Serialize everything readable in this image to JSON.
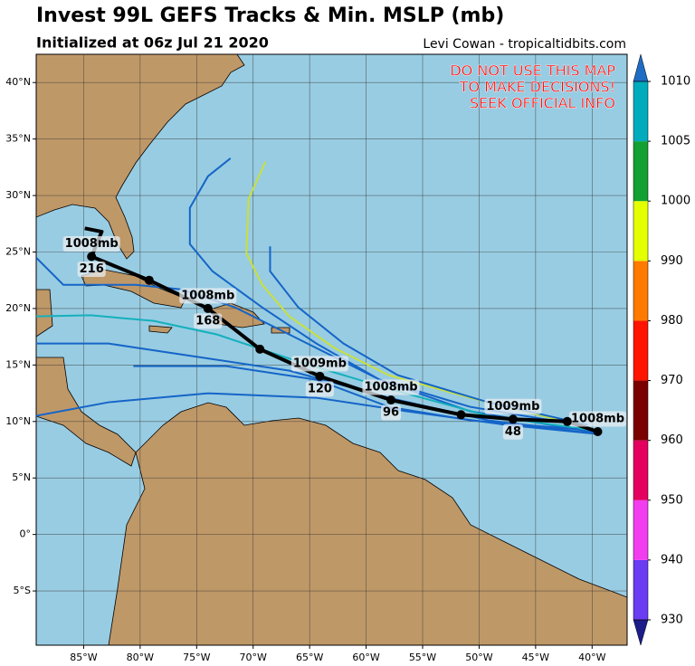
{
  "chart_data": {
    "type": "track-map",
    "title": "Invest 99L GEFS Tracks & Min. MSLP (mb)",
    "subtitle": "Initialized at 06z Jul 21 2020",
    "credit": "Levi Cowan - tropicaltidbits.com",
    "warning": [
      "DO NOT USE THIS MAP",
      "TO MAKE DECISIONS!",
      "SEEK OFFICIAL INFO"
    ],
    "xlim": [
      -89.2,
      -36.9
    ],
    "ylim": [
      -9.8,
      42.5
    ],
    "xticks": [
      {
        "value": -85,
        "label": "85°W"
      },
      {
        "value": -80,
        "label": "80°W"
      },
      {
        "value": -75,
        "label": "75°W"
      },
      {
        "value": -70,
        "label": "70°W"
      },
      {
        "value": -65,
        "label": "65°W"
      },
      {
        "value": -60,
        "label": "60°W"
      },
      {
        "value": -55,
        "label": "55°W"
      },
      {
        "value": -50,
        "label": "50°W"
      },
      {
        "value": -45,
        "label": "45°W"
      },
      {
        "value": -40,
        "label": "40°W"
      }
    ],
    "yticks": [
      {
        "value": -5,
        "label": "5°S"
      },
      {
        "value": 0,
        "label": "0°"
      },
      {
        "value": 5,
        "label": "5°N"
      },
      {
        "value": 10,
        "label": "10°N"
      },
      {
        "value": 15,
        "label": "15°N"
      },
      {
        "value": 20,
        "label": "20°N"
      },
      {
        "value": 25,
        "label": "25°N"
      },
      {
        "value": 30,
        "label": "30°N"
      },
      {
        "value": 35,
        "label": "35°N"
      },
      {
        "value": 40,
        "label": "40°N"
      }
    ],
    "grid": true,
    "members": [
      {
        "color": "#1565c8",
        "lon": [
          -72.0,
          -74.0,
          -75.6,
          -75.6,
          -73.6,
          -69.2,
          -64.4,
          -58.8,
          -50.8,
          -41.2
        ],
        "lat": [
          33.3,
          31.7,
          28.9,
          25.7,
          23.3,
          20.1,
          16.9,
          13.7,
          11.3,
          9.7
        ]
      },
      {
        "color": "#c8e03a",
        "lon": [
          -68.9,
          -70.4,
          -70.6,
          -69.2,
          -66.8,
          -62.8,
          -58.0,
          -50.8,
          -41.2
        ],
        "lat": [
          33.0,
          29.7,
          24.9,
          22.1,
          19.3,
          16.5,
          14.1,
          12.1,
          9.7
        ]
      },
      {
        "color": "#1565c8",
        "lon": [
          -89.2,
          -86.8,
          -80.4,
          -76.4,
          -71.6,
          -66.0,
          -58.8,
          -50.8,
          -39.6
        ],
        "lat": [
          24.5,
          22.1,
          22.1,
          21.7,
          20.1,
          17.3,
          13.7,
          10.9,
          9.0
        ]
      },
      {
        "color": "#14b0bc",
        "lon": [
          -89.2,
          -84.4,
          -78.8,
          -73.2,
          -66.0,
          -58.0,
          -49.2,
          -40.4
        ],
        "lat": [
          19.3,
          19.4,
          18.9,
          17.7,
          15.3,
          12.9,
          10.5,
          9.3
        ]
      },
      {
        "color": "#1565c8",
        "lon": [
          -89.2,
          -82.8,
          -74.8,
          -66.8,
          -58.0,
          -49.2,
          -40.4
        ],
        "lat": [
          16.9,
          16.9,
          15.7,
          14.5,
          12.1,
          10.1,
          9.0
        ]
      },
      {
        "color": "#1565c8",
        "lon": [
          -80.6,
          -72.4,
          -64.4,
          -58.0,
          -50.8,
          -41.2
        ],
        "lat": [
          14.9,
          14.9,
          13.7,
          11.3,
          10.1,
          9.3
        ]
      },
      {
        "color": "#1565c8",
        "lon": [
          -89.2,
          -82.8,
          -74.0,
          -64.4,
          -56.4,
          -47.6,
          -39.6
        ],
        "lat": [
          10.5,
          11.7,
          12.5,
          12.1,
          10.9,
          9.7,
          8.9
        ]
      },
      {
        "color": "#1565c8",
        "lon": [
          -68.5,
          -68.5,
          -66.0,
          -62.0,
          -57.2,
          -49.2,
          -40.4
        ],
        "lat": [
          25.5,
          23.3,
          20.1,
          16.9,
          14.1,
          11.7,
          9.7
        ]
      }
    ],
    "mean_track": {
      "color": "#000000",
      "lon": [
        -39.5,
        -42.2,
        -47.0,
        -51.6,
        -57.8,
        -64.1,
        -69.4,
        -74.0,
        -79.2,
        -84.3,
        -83.4,
        -84.9
      ],
      "lat": [
        9.1,
        10.0,
        10.2,
        10.6,
        11.9,
        14.0,
        16.4,
        20.0,
        22.5,
        24.6,
        26.8,
        27.1
      ],
      "pressure_labels": [
        "1008mb",
        null,
        "1009mb",
        null,
        "1008mb",
        "1009mb",
        null,
        "1008mb",
        null,
        "1008mb",
        null,
        null
      ],
      "hour_labels": [
        null,
        null,
        "48",
        null,
        "96",
        "120",
        null,
        "168",
        null,
        "216",
        null,
        null
      ]
    },
    "colorbar": {
      "ticks": [
        930,
        940,
        950,
        960,
        970,
        980,
        990,
        1000,
        1005,
        1010
      ],
      "colors": [
        "#6a3cf2",
        "#f23cf0",
        "#e4005e",
        "#7a0000",
        "#ff1400",
        "#ff7a00",
        "#e4ff00",
        "#12a032",
        "#00acbc"
      ],
      "under_color": "#1c1c8a",
      "over_color": "#1e6cc4"
    }
  }
}
